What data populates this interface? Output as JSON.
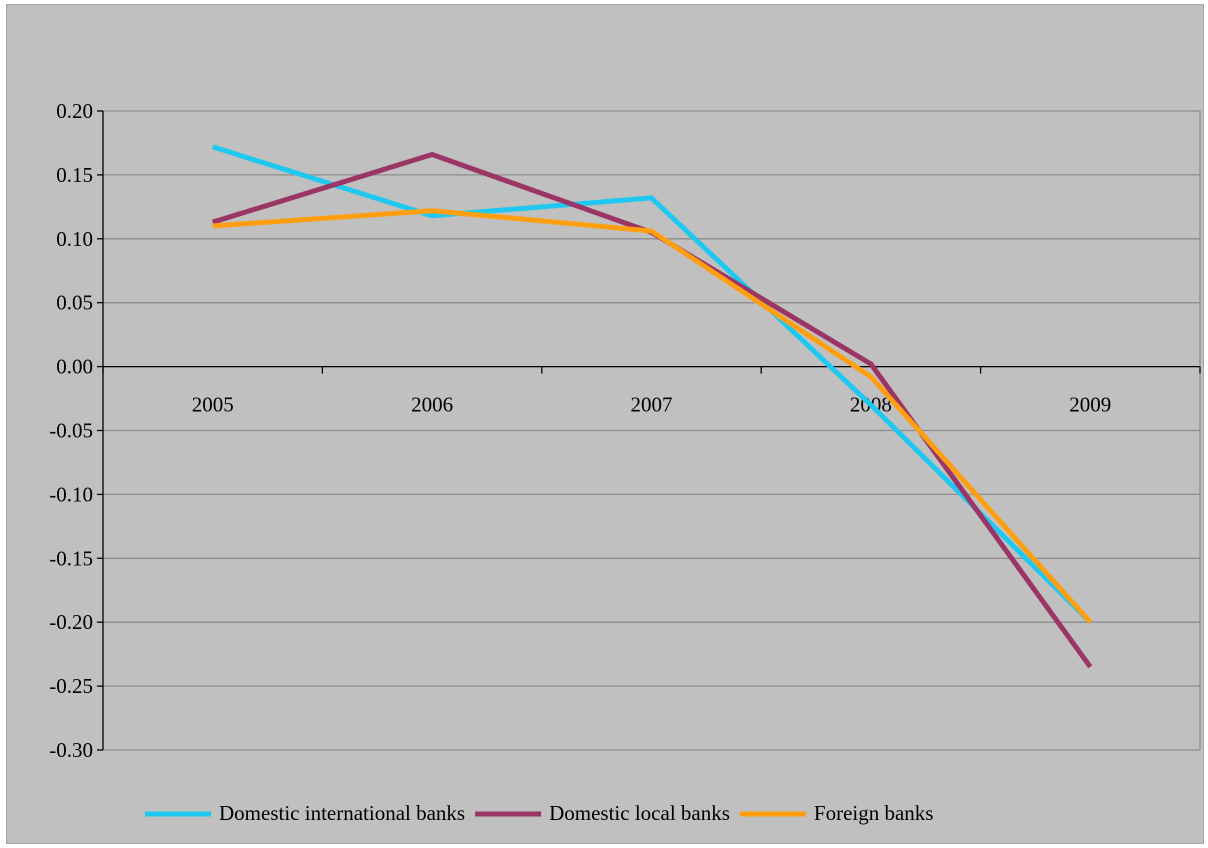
{
  "chart_data": {
    "type": "line",
    "title": "",
    "xlabel": "",
    "ylabel": "",
    "categories": [
      "2005",
      "2006",
      "2007",
      "2008",
      "2009"
    ],
    "ylim": [
      -0.3,
      0.2
    ],
    "yticks": [
      "0.20",
      "0.15",
      "0.10",
      "0.05",
      "0.00",
      "-0.05",
      "-0.10",
      "-0.15",
      "-0.20",
      "-0.25",
      "-0.30"
    ],
    "grid": true,
    "legend_position": "bottom",
    "series": [
      {
        "name": "Domestic international banks",
        "color": "#1ec8f0",
        "values": [
          0.172,
          0.118,
          0.132,
          -0.03,
          -0.2
        ]
      },
      {
        "name": "Domestic local banks",
        "color": "#9b3566",
        "values": [
          0.113,
          0.166,
          0.105,
          0.002,
          -0.235
        ]
      },
      {
        "name": "Foreign banks",
        "color": "#ff9f10",
        "values": [
          0.11,
          0.122,
          0.106,
          -0.008,
          -0.2
        ]
      }
    ]
  }
}
